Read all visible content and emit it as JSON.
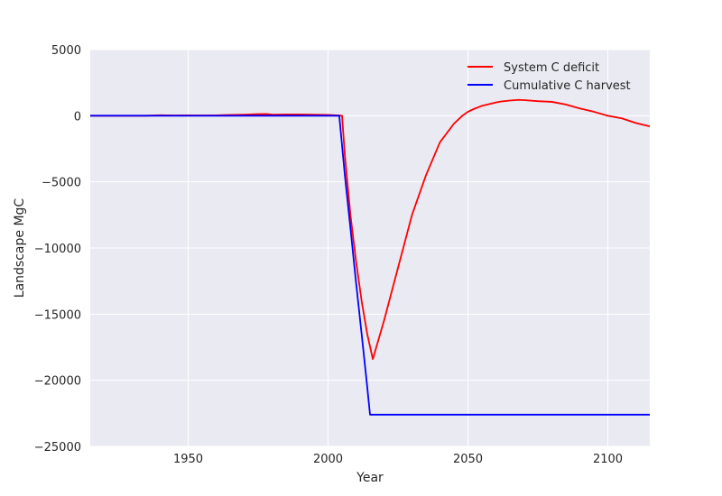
{
  "chart_data": {
    "type": "line",
    "title": "",
    "xlabel": "Year",
    "ylabel": "Landscape MgC",
    "xlim": [
      1915,
      2115
    ],
    "ylim": [
      -25000,
      5000
    ],
    "x_ticks": [
      1950,
      2000,
      2050,
      2100
    ],
    "x_tick_labels": [
      "1950",
      "2000",
      "2050",
      "2100"
    ],
    "y_ticks": [
      5000,
      0,
      -5000,
      -10000,
      -15000,
      -20000,
      -25000
    ],
    "y_tick_labels": [
      "5000",
      "0",
      "−5000",
      "−10000",
      "−15000",
      "−20000",
      "−25000"
    ],
    "grid": true,
    "legend_position": "upper right",
    "colors": {
      "background": "#eaeaf2",
      "grid": "#ffffff",
      "text": "#262626"
    },
    "series": [
      {
        "name": "System C deficit",
        "color": "#ff0000",
        "band_color": "#f4a0a8",
        "band_width": 60,
        "x": [
          1915,
          1930,
          1935,
          1940,
          1945,
          1950,
          1955,
          1960,
          1965,
          1970,
          1975,
          1978,
          1980,
          1985,
          1990,
          1995,
          2000,
          2003,
          2005,
          2006,
          2008,
          2010,
          2012,
          2014,
          2016,
          2020,
          2025,
          2030,
          2035,
          2040,
          2045,
          2048,
          2050,
          2052,
          2055,
          2058,
          2060,
          2062,
          2065,
          2068,
          2070,
          2075,
          2080,
          2085,
          2090,
          2095,
          2100,
          2105,
          2110,
          2115
        ],
        "values": [
          0,
          0,
          0,
          40,
          20,
          30,
          20,
          30,
          60,
          80,
          120,
          130,
          80,
          100,
          100,
          80,
          60,
          30,
          0,
          -3000,
          -7500,
          -11000,
          -14000,
          -16500,
          -18400,
          -15500,
          -11500,
          -7500,
          -4500,
          -2000,
          -600,
          0,
          300,
          500,
          750,
          900,
          1000,
          1080,
          1150,
          1200,
          1180,
          1100,
          1050,
          850,
          550,
          300,
          0,
          -200,
          -550,
          -800
        ]
      },
      {
        "name": "Cumulative C harvest",
        "color": "#0000ff",
        "x": [
          1915,
          2004,
          2006,
          2008,
          2010,
          2012,
          2014,
          2015,
          2115
        ],
        "values": [
          0,
          0,
          -4500,
          -8500,
          -12600,
          -16500,
          -20500,
          -22600,
          -22600
        ]
      }
    ]
  }
}
